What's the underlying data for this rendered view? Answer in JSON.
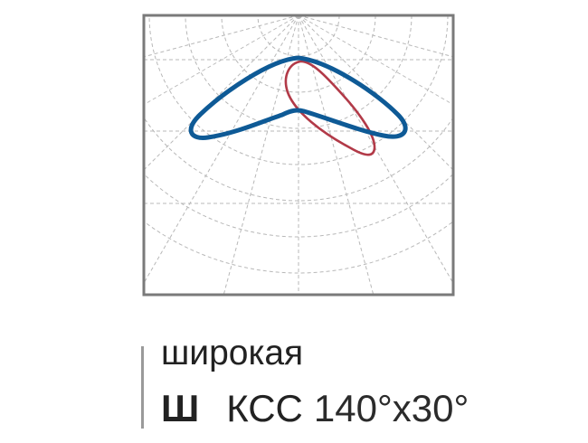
{
  "caption": {
    "type_label": "широкая",
    "code": "Ш",
    "curve_label": "КСС",
    "angles": "140°x30°"
  },
  "diagram": {
    "frame_color": "#7a7a7a",
    "grid_color": "#b8b8b8",
    "curves": [
      {
        "id": "transverse-plane",
        "color": "#0e5a96",
        "beam_angle_deg": 140
      },
      {
        "id": "longitudinal-plane",
        "color": "#b23a48",
        "beam_angle_deg": 30
      }
    ]
  }
}
